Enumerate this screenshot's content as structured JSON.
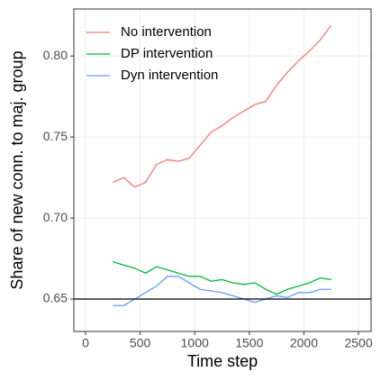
{
  "chart_data": {
    "type": "line",
    "x_label": "Time step",
    "y_label": "Share of new conn. to maj. group",
    "x": [
      250,
      350,
      450,
      550,
      650,
      750,
      850,
      950,
      1050,
      1150,
      1250,
      1350,
      1450,
      1550,
      1650,
      1750,
      1850,
      1950,
      2050,
      2150,
      2250
    ],
    "series": [
      {
        "name": "No intervention",
        "color": "#F8766D",
        "values": [
          0.722,
          0.725,
          0.719,
          0.722,
          0.733,
          0.736,
          0.735,
          0.737,
          0.745,
          0.753,
          0.757,
          0.762,
          0.766,
          0.77,
          0.772,
          0.782,
          0.79,
          0.797,
          0.803,
          0.81,
          0.819
        ]
      },
      {
        "name": "DP intervention",
        "color": "#00BA38",
        "values": [
          0.673,
          0.671,
          0.669,
          0.666,
          0.67,
          0.668,
          0.666,
          0.664,
          0.664,
          0.661,
          0.662,
          0.66,
          0.659,
          0.66,
          0.656,
          0.653,
          0.656,
          0.658,
          0.66,
          0.663,
          0.662
        ]
      },
      {
        "name": "Dyn intervention",
        "color": "#619CFF",
        "values": [
          0.646,
          0.646,
          0.65,
          0.654,
          0.658,
          0.664,
          0.664,
          0.66,
          0.656,
          0.655,
          0.654,
          0.652,
          0.65,
          0.648,
          0.65,
          0.652,
          0.651,
          0.654,
          0.654,
          0.656,
          0.656
        ]
      }
    ],
    "hline": 0.65,
    "xlim": [
      -107,
      2615
    ],
    "xticks": [
      0,
      500,
      1000,
      1500,
      2000,
      2500
    ],
    "ylim": [
      0.63,
      0.829
    ],
    "yticks": [
      0.65,
      {
        "value": 0.7,
        "label": "0.70"
      },
      0.75,
      {
        "value": 0.8,
        "label": "0.80"
      }
    ],
    "grid": true,
    "legend": "top-left"
  }
}
